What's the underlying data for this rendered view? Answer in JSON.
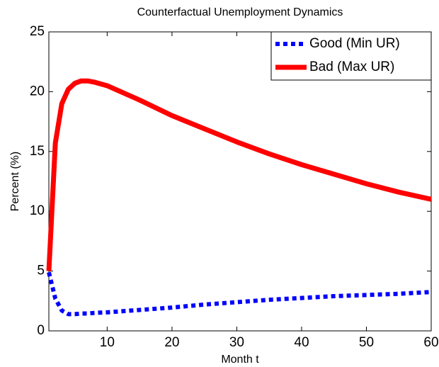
{
  "chart_data": {
    "type": "line",
    "title": "Counterfactual Unemployment Dynamics",
    "xlabel": "Month t",
    "ylabel": "Percent (%)",
    "x": [
      1,
      2,
      3,
      4,
      5,
      6,
      7,
      8,
      10,
      15,
      20,
      25,
      30,
      35,
      40,
      45,
      50,
      55,
      60
    ],
    "series": [
      {
        "name": "Good (Min UR)",
        "color": "#0000ff",
        "style": "dotted",
        "values": [
          4.9,
          2.7,
          1.7,
          1.4,
          1.4,
          1.45,
          1.45,
          1.5,
          1.55,
          1.75,
          1.95,
          2.2,
          2.4,
          2.6,
          2.75,
          2.9,
          3.0,
          3.1,
          3.25
        ]
      },
      {
        "name": "Bad (Max UR)",
        "color": "#ff0000",
        "style": "solid",
        "values": [
          5,
          15.7,
          19,
          20.2,
          20.7,
          20.9,
          20.9,
          20.8,
          20.5,
          19.3,
          18,
          16.9,
          15.8,
          14.8,
          13.9,
          13.1,
          12.3,
          11.6,
          11.0
        ]
      }
    ],
    "xlim": [
      1,
      60
    ],
    "ylim": [
      0,
      25
    ],
    "xticks": [
      10,
      20,
      30,
      40,
      50,
      60
    ],
    "yticks": [
      0,
      5,
      10,
      15,
      20,
      25
    ],
    "legend": "top-right"
  }
}
